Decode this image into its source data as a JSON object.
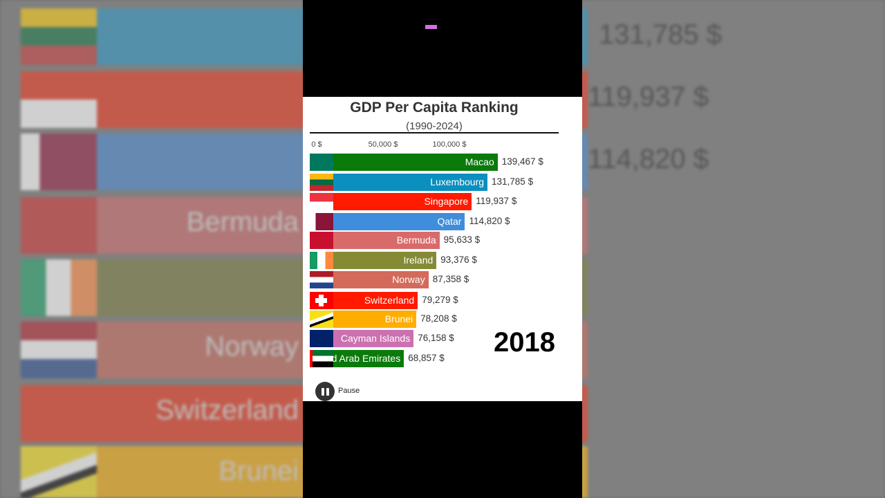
{
  "chart_data": {
    "type": "bar",
    "title": "GDP Per Capita Ranking",
    "subtitle": "(1990-2024)",
    "orientation": "horizontal",
    "xticks": [
      "0 $",
      "50,000 $",
      "100,000 $"
    ],
    "xtick_values": [
      0,
      50000,
      100000
    ],
    "year": "2018",
    "categories": [
      "Macao",
      "Luxembourg",
      "Singapore",
      "Qatar",
      "Bermuda",
      "Ireland",
      "Norway",
      "Switzerland",
      "Brunei",
      "Cayman Islands",
      "United Arab Emirates"
    ],
    "values": [
      139467,
      131785,
      119937,
      114820,
      95633,
      93376,
      87358,
      79279,
      78208,
      76158,
      68857
    ],
    "value_labels": [
      "139,467 $",
      "131,785 $",
      "119,937 $",
      "114,820 $",
      "95,633 $",
      "93,376 $",
      "87,358 $",
      "79,279 $",
      "78,208 $",
      "76,158 $",
      "68,857 $"
    ],
    "colors": [
      "#0a7a0a",
      "#0a8fbf",
      "#ff1a00",
      "#3f8ddb",
      "#d96a6a",
      "#858a35",
      "#d46a5a",
      "#ff1a00",
      "#ffad00",
      "#cc70b0",
      "#0a7a0a"
    ]
  },
  "controls": {
    "pause_label": "Pause"
  },
  "colors": {
    "accent_pink": "#d46fe0"
  }
}
